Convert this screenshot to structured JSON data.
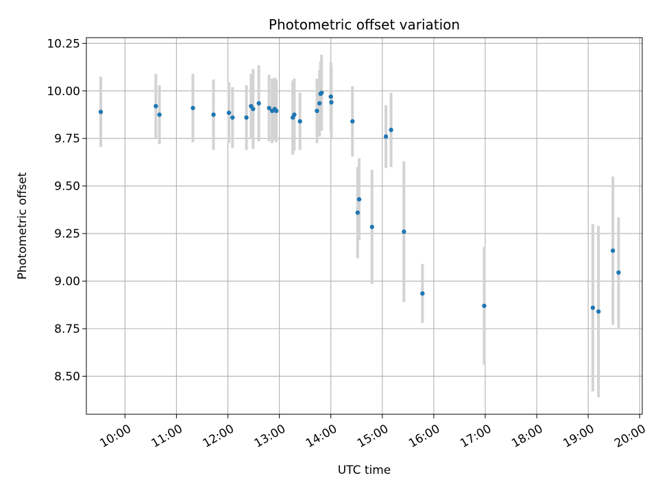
{
  "chart_data": {
    "type": "scatter",
    "title": "Photometric offset variation",
    "xlabel": "UTC time",
    "ylabel": "Photometric offset",
    "grid": true,
    "x_unit": "hours",
    "xlim": [
      9.25,
      20.05
    ],
    "ylim": [
      8.3,
      10.28
    ],
    "x_ticks": [
      {
        "value": 10,
        "label": "10:00"
      },
      {
        "value": 11,
        "label": "11:00"
      },
      {
        "value": 12,
        "label": "12:00"
      },
      {
        "value": 13,
        "label": "13:00"
      },
      {
        "value": 14,
        "label": "14:00"
      },
      {
        "value": 15,
        "label": "15:00"
      },
      {
        "value": 16,
        "label": "16:00"
      },
      {
        "value": 17,
        "label": "17:00"
      },
      {
        "value": 18,
        "label": "18:00"
      },
      {
        "value": 19,
        "label": "19:00"
      },
      {
        "value": 20,
        "label": "20:00"
      }
    ],
    "y_ticks": [
      {
        "value": 8.5,
        "label": "8.50"
      },
      {
        "value": 8.75,
        "label": "8.75"
      },
      {
        "value": 9.0,
        "label": "9.00"
      },
      {
        "value": 9.25,
        "label": "9.25"
      },
      {
        "value": 9.5,
        "label": "9.50"
      },
      {
        "value": 9.75,
        "label": "9.75"
      },
      {
        "value": 10.0,
        "label": "10.00"
      },
      {
        "value": 10.25,
        "label": "10.25"
      }
    ],
    "point_color": "#1f77b4",
    "errorbar_color": "#d3d3d3",
    "points": [
      {
        "x": 9.53,
        "y": 9.89,
        "err": 0.185
      },
      {
        "x": 10.6,
        "y": 9.92,
        "err": 0.17
      },
      {
        "x": 10.67,
        "y": 9.875,
        "err": 0.155
      },
      {
        "x": 11.32,
        "y": 9.91,
        "err": 0.18
      },
      {
        "x": 11.72,
        "y": 9.875,
        "err": 0.185
      },
      {
        "x": 12.02,
        "y": 9.885,
        "err": 0.16
      },
      {
        "x": 12.09,
        "y": 9.86,
        "err": 0.16
      },
      {
        "x": 12.36,
        "y": 9.86,
        "err": 0.17
      },
      {
        "x": 12.45,
        "y": 9.92,
        "err": 0.17
      },
      {
        "x": 12.49,
        "y": 9.905,
        "err": 0.21
      },
      {
        "x": 12.6,
        "y": 9.935,
        "err": 0.2
      },
      {
        "x": 12.8,
        "y": 9.91,
        "err": 0.175
      },
      {
        "x": 12.86,
        "y": 9.895,
        "err": 0.17
      },
      {
        "x": 12.91,
        "y": 9.905,
        "err": 0.165
      },
      {
        "x": 12.94,
        "y": 9.895,
        "err": 0.165
      },
      {
        "x": 13.26,
        "y": 9.86,
        "err": 0.195
      },
      {
        "x": 13.29,
        "y": 9.875,
        "err": 0.19
      },
      {
        "x": 13.4,
        "y": 9.84,
        "err": 0.15
      },
      {
        "x": 13.73,
        "y": 9.895,
        "err": 0.17
      },
      {
        "x": 13.78,
        "y": 9.935,
        "err": 0.175
      },
      {
        "x": 13.8,
        "y": 9.985,
        "err": 0.17
      },
      {
        "x": 13.82,
        "y": 9.99,
        "err": 0.2
      },
      {
        "x": 14.0,
        "y": 9.97,
        "err": 0.18
      },
      {
        "x": 14.01,
        "y": 9.94,
        "err": 0.19
      },
      {
        "x": 14.42,
        "y": 9.84,
        "err": 0.185
      },
      {
        "x": 14.52,
        "y": 9.36,
        "err": 0.24
      },
      {
        "x": 14.55,
        "y": 9.43,
        "err": 0.215
      },
      {
        "x": 14.8,
        "y": 9.285,
        "err": 0.3
      },
      {
        "x": 15.07,
        "y": 9.76,
        "err": 0.165
      },
      {
        "x": 15.17,
        "y": 9.795,
        "err": 0.195
      },
      {
        "x": 15.42,
        "y": 9.26,
        "err": 0.37
      },
      {
        "x": 15.78,
        "y": 8.935,
        "err": 0.155
      },
      {
        "x": 16.98,
        "y": 8.87,
        "err": 0.31
      },
      {
        "x": 19.09,
        "y": 8.86,
        "err": 0.44
      },
      {
        "x": 19.2,
        "y": 8.84,
        "err": 0.45
      },
      {
        "x": 19.48,
        "y": 9.16,
        "err": 0.39
      },
      {
        "x": 19.59,
        "y": 9.045,
        "err": 0.29
      }
    ]
  }
}
